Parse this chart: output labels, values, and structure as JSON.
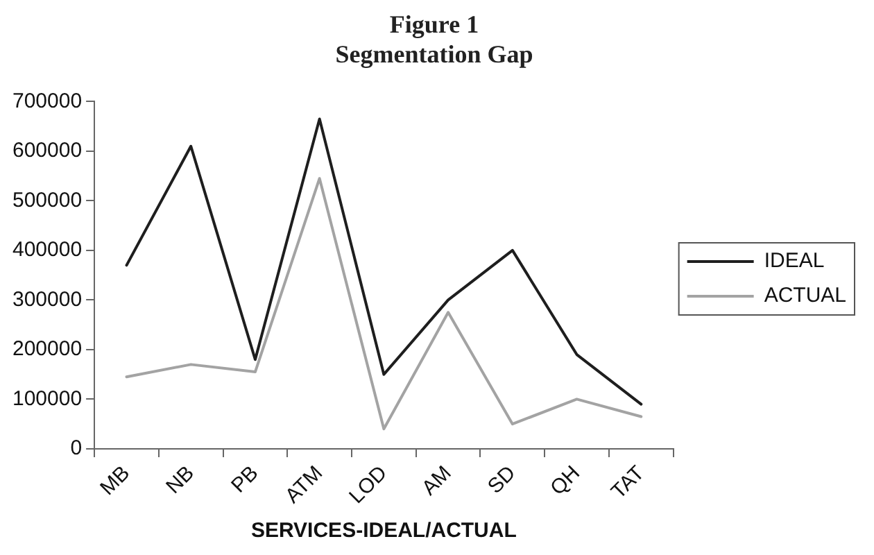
{
  "chart_data": {
    "type": "line",
    "title": "Figure 1",
    "subtitle": "Segmentation Gap",
    "xlabel": "SERVICES-IDEAL/ACTUAL",
    "categories": [
      "MB",
      "NB",
      "PB",
      "ATM",
      "LOD",
      "AM",
      "SD",
      "QH",
      "TAT"
    ],
    "series": [
      {
        "name": "IDEAL",
        "color": "#1e1e1e",
        "values": [
          370000,
          610000,
          180000,
          665000,
          150000,
          300000,
          400000,
          190000,
          90000
        ]
      },
      {
        "name": "ACTUAL",
        "color": "#a3a3a3",
        "values": [
          145000,
          170000,
          155000,
          545000,
          40000,
          275000,
          50000,
          100000,
          65000
        ]
      }
    ],
    "ylim": [
      0,
      700000
    ],
    "yticks": [
      0,
      100000,
      200000,
      300000,
      400000,
      500000,
      600000,
      700000
    ],
    "grid": false,
    "legend": "right",
    "marker": "none",
    "line_style": "solid"
  }
}
